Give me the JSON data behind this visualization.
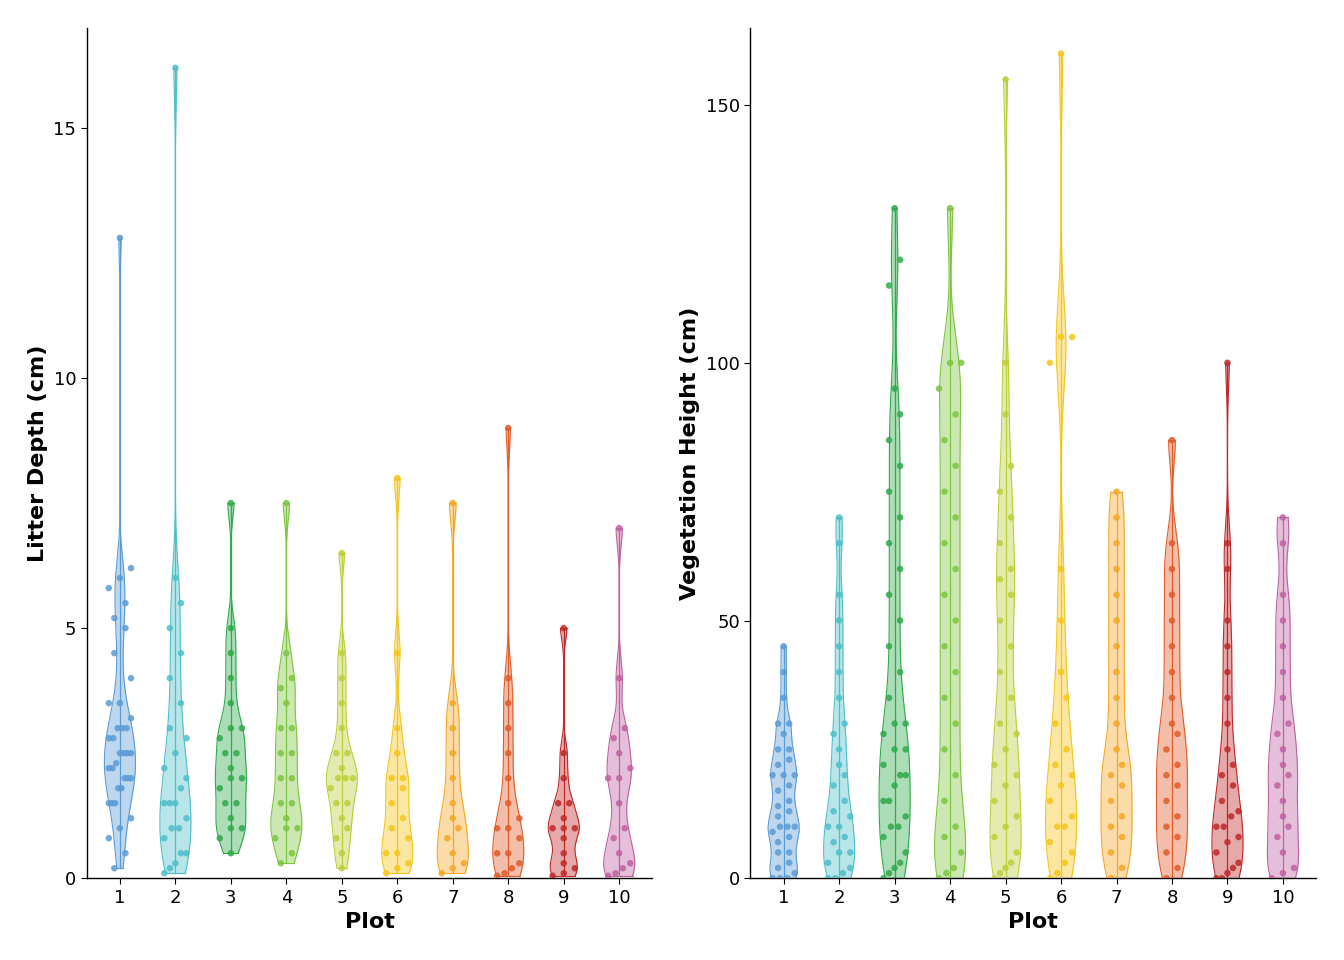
{
  "colors": [
    "#5B9BD5",
    "#4DBFC8",
    "#2EAA4A",
    "#7DC440",
    "#BCCF3A",
    "#F5C518",
    "#F5A623",
    "#E05C2A",
    "#C0282A",
    "#C060A0"
  ],
  "litter_depth": {
    "1": [
      0.2,
      0.5,
      0.8,
      1.0,
      1.2,
      1.5,
      1.5,
      1.5,
      1.8,
      1.8,
      2.0,
      2.0,
      2.0,
      2.2,
      2.2,
      2.3,
      2.5,
      2.5,
      2.5,
      2.5,
      2.8,
      2.8,
      3.0,
      3.0,
      3.0,
      3.2,
      3.5,
      3.5,
      4.0,
      4.5,
      5.0,
      5.2,
      5.5,
      5.8,
      6.0,
      6.2,
      12.8
    ],
    "2": [
      0.1,
      0.2,
      0.3,
      0.5,
      0.5,
      0.8,
      1.0,
      1.0,
      1.2,
      1.5,
      1.5,
      1.5,
      1.8,
      2.0,
      2.2,
      2.5,
      2.8,
      3.0,
      3.5,
      4.0,
      4.5,
      5.0,
      5.5,
      6.0,
      16.2
    ],
    "3": [
      0.5,
      0.8,
      1.0,
      1.0,
      1.2,
      1.5,
      1.5,
      1.8,
      2.0,
      2.0,
      2.2,
      2.5,
      2.5,
      2.8,
      3.0,
      3.0,
      3.5,
      4.0,
      4.5,
      5.0,
      7.5
    ],
    "4": [
      0.3,
      0.5,
      0.8,
      1.0,
      1.0,
      1.2,
      1.5,
      1.5,
      2.0,
      2.0,
      2.5,
      2.5,
      3.0,
      3.0,
      3.5,
      3.8,
      4.0,
      4.5,
      7.5
    ],
    "5": [
      0.2,
      0.5,
      0.8,
      1.0,
      1.2,
      1.5,
      1.5,
      1.8,
      2.0,
      2.0,
      2.0,
      2.2,
      2.5,
      2.5,
      3.0,
      3.5,
      4.0,
      4.5,
      6.5
    ],
    "6": [
      0.1,
      0.2,
      0.3,
      0.5,
      0.5,
      0.8,
      1.0,
      1.2,
      1.5,
      1.8,
      2.0,
      2.0,
      2.5,
      3.0,
      4.5,
      8.0
    ],
    "7": [
      0.1,
      0.2,
      0.3,
      0.5,
      0.8,
      1.0,
      1.2,
      1.5,
      2.0,
      2.5,
      3.0,
      3.5,
      7.5
    ],
    "8": [
      0.05,
      0.1,
      0.2,
      0.3,
      0.5,
      0.5,
      0.8,
      1.0,
      1.0,
      1.2,
      1.5,
      2.0,
      2.5,
      3.0,
      3.5,
      4.0,
      9.0
    ],
    "9": [
      0.05,
      0.1,
      0.2,
      0.3,
      0.5,
      0.8,
      1.0,
      1.0,
      1.0,
      1.2,
      1.5,
      1.5,
      2.0,
      2.5,
      5.0
    ],
    "10": [
      0.05,
      0.1,
      0.2,
      0.3,
      0.5,
      0.8,
      1.0,
      1.5,
      2.0,
      2.0,
      2.2,
      2.5,
      2.8,
      3.0,
      4.0,
      7.0
    ]
  },
  "veg_height": {
    "1": [
      0,
      0,
      0,
      1,
      2,
      3,
      5,
      5,
      7,
      8,
      9,
      10,
      10,
      10,
      12,
      13,
      14,
      15,
      17,
      18,
      20,
      20,
      20,
      22,
      23,
      25,
      25,
      28,
      30,
      30,
      35,
      40,
      45
    ],
    "2": [
      0,
      0,
      1,
      2,
      3,
      5,
      5,
      7,
      8,
      10,
      10,
      12,
      13,
      15,
      18,
      20,
      22,
      25,
      28,
      30,
      35,
      40,
      45,
      50,
      55,
      65,
      70
    ],
    "3": [
      0,
      1,
      2,
      3,
      5,
      8,
      10,
      10,
      12,
      15,
      15,
      18,
      20,
      20,
      22,
      25,
      25,
      28,
      30,
      30,
      35,
      40,
      45,
      50,
      55,
      60,
      65,
      70,
      75,
      80,
      85,
      90,
      95,
      115,
      120,
      130
    ],
    "4": [
      0,
      1,
      2,
      5,
      8,
      10,
      15,
      20,
      25,
      30,
      35,
      40,
      45,
      50,
      55,
      60,
      65,
      70,
      75,
      80,
      85,
      90,
      95,
      100,
      100,
      130
    ],
    "5": [
      0,
      1,
      2,
      3,
      5,
      8,
      10,
      12,
      15,
      18,
      20,
      22,
      25,
      28,
      30,
      35,
      40,
      45,
      50,
      55,
      58,
      60,
      65,
      70,
      75,
      80,
      90,
      100,
      155
    ],
    "6": [
      0,
      1,
      3,
      5,
      7,
      10,
      10,
      12,
      15,
      18,
      20,
      22,
      25,
      30,
      35,
      40,
      50,
      60,
      100,
      105,
      105,
      160
    ],
    "7": [
      0,
      2,
      5,
      8,
      10,
      12,
      15,
      18,
      20,
      22,
      25,
      30,
      35,
      40,
      45,
      50,
      55,
      60,
      65,
      70,
      75
    ],
    "8": [
      0,
      2,
      5,
      8,
      10,
      12,
      15,
      18,
      20,
      22,
      25,
      28,
      30,
      35,
      40,
      45,
      50,
      55,
      60,
      65,
      85
    ],
    "9": [
      0,
      0,
      1,
      2,
      3,
      5,
      7,
      8,
      10,
      10,
      12,
      13,
      15,
      18,
      20,
      22,
      25,
      30,
      35,
      40,
      45,
      50,
      60,
      65,
      100
    ],
    "10": [
      0,
      1,
      2,
      5,
      8,
      10,
      12,
      15,
      18,
      20,
      22,
      25,
      28,
      30,
      35,
      40,
      45,
      50,
      55,
      65,
      70
    ]
  },
  "litter_ylim": [
    0,
    17
  ],
  "veg_ylim": [
    0,
    165
  ],
  "litter_yticks": [
    0,
    5,
    10,
    15
  ],
  "veg_yticks": [
    0,
    50,
    100,
    150
  ],
  "xlabel": "Plot",
  "litter_ylabel": "Litter Depth (cm)",
  "veg_ylabel": "Vegetation Height (cm)",
  "bg_color": "#FFFFFF"
}
